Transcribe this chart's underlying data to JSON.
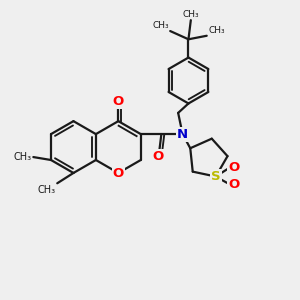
{
  "bg_color": "#efefef",
  "bond_color": "#1a1a1a",
  "bond_lw": 1.6,
  "atom_colors": {
    "O": "#ff0000",
    "N": "#0000cc",
    "S": "#bbbb00",
    "C": "#1a1a1a"
  },
  "font_size": 8.5,
  "figsize": [
    3.0,
    3.0
  ],
  "dpi": 100,
  "xlim": [
    0,
    10
  ],
  "ylim": [
    0,
    10
  ]
}
